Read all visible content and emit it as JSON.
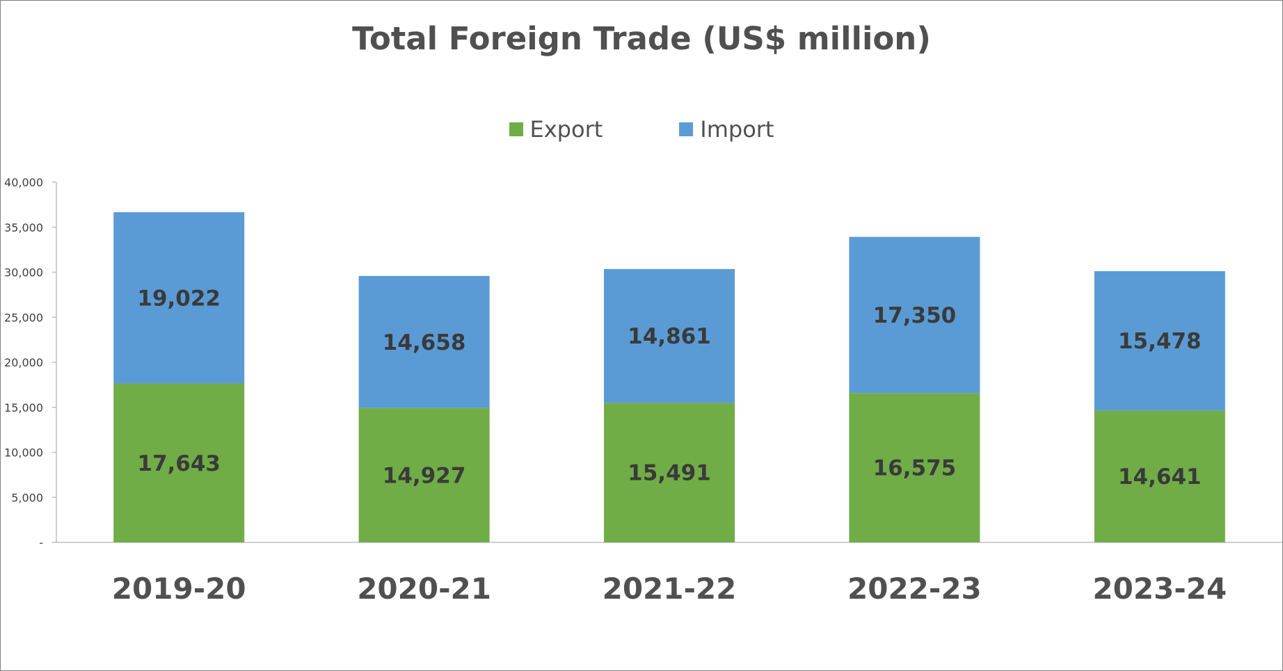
{
  "chart_data": {
    "type": "bar",
    "stacked": true,
    "title": "Total Foreign Trade (US$ million)",
    "categories": [
      "2019-20",
      "2020-21",
      "2021-22",
      "2022-23",
      "2023-24"
    ],
    "series": [
      {
        "name": "Export",
        "color": "#70ad47",
        "values": [
          17643,
          14927,
          15491,
          16575,
          14641
        ]
      },
      {
        "name": "Import",
        "color": "#5b9bd5",
        "values": [
          19022,
          14658,
          14861,
          17350,
          15478
        ]
      }
    ],
    "data_labels": {
      "Export": [
        "17,643",
        "14,927",
        "15,491",
        "16,575",
        "14,641"
      ],
      "Import": [
        "19,022",
        "14,658",
        "14,861",
        "17,350",
        "15,478"
      ]
    },
    "ylim": [
      0,
      40000
    ],
    "yticks": [
      0,
      5000,
      10000,
      15000,
      20000,
      25000,
      30000,
      35000,
      40000
    ],
    "ytick_labels": [
      "-",
      "5,000",
      "10,000",
      "15,000",
      "20,000",
      "25,000",
      "30,000",
      "35,000",
      "40,000"
    ],
    "xlabel": "",
    "ylabel": "",
    "grid": false,
    "legend_position": "top"
  }
}
